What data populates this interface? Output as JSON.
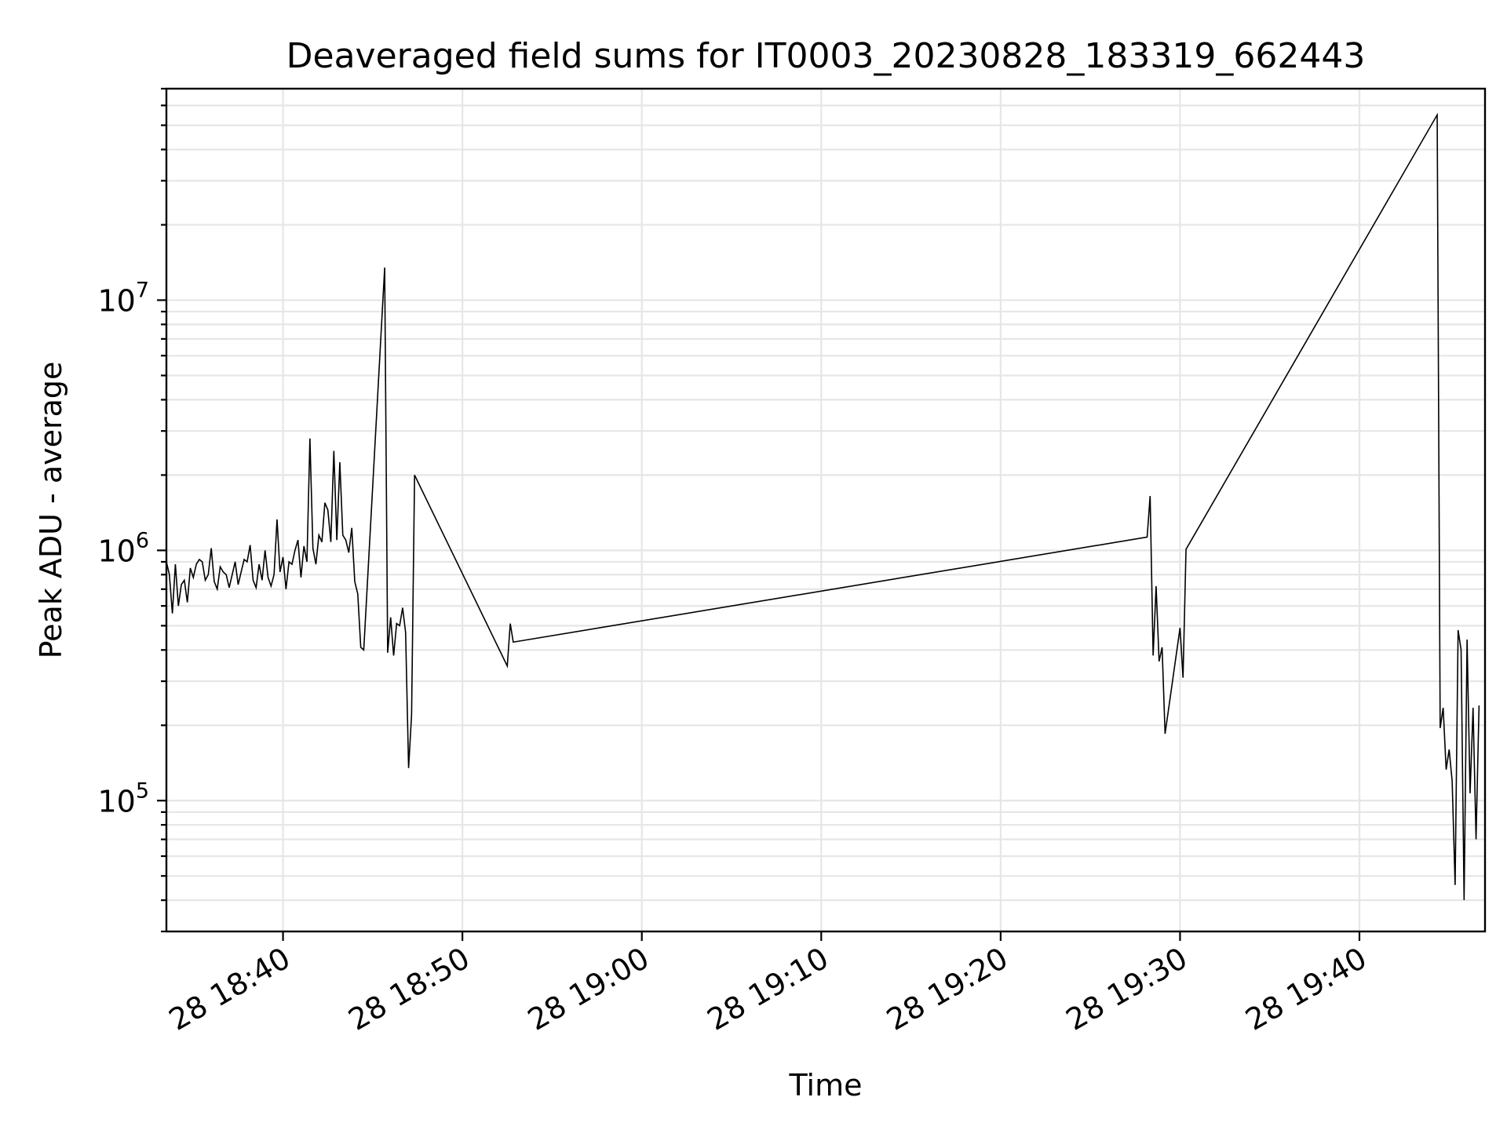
{
  "chart_data": {
    "type": "line",
    "title": "Deaveraged field sums for IT0003_20230828_183319_662443",
    "xlabel": "Time",
    "ylabel": "Peak ADU - average",
    "x_axis": "time",
    "y_scale": "log",
    "xlim": [
      "2023-08-28T18:33:30",
      "2023-08-28T19:47:00"
    ],
    "ylim": [
      30000,
      70000000
    ],
    "grid": true,
    "x_ticks": [
      "2023-08-28T18:40",
      "2023-08-28T18:50",
      "2023-08-28T19:00",
      "2023-08-28T19:10",
      "2023-08-28T19:20",
      "2023-08-28T19:30",
      "2023-08-28T19:40"
    ],
    "x_tick_labels": [
      "28 18:40",
      "28 18:50",
      "28 19:00",
      "28 19:10",
      "28 19:20",
      "28 19:30",
      "28 19:40"
    ],
    "y_ticks": [
      100000,
      1000000,
      10000000
    ],
    "y_tick_labels": [
      {
        "base": "10",
        "exp": "5"
      },
      {
        "base": "10",
        "exp": "6"
      },
      {
        "base": "10",
        "exp": "7"
      }
    ],
    "series": [
      {
        "color": "#000000",
        "points": [
          [
            "2023-08-28T18:33:30",
            900000
          ],
          [
            "2023-08-28T18:33:40",
            800000
          ],
          [
            "2023-08-28T18:33:50",
            560000
          ],
          [
            "2023-08-28T18:34:00",
            880000
          ],
          [
            "2023-08-28T18:34:10",
            600000
          ],
          [
            "2023-08-28T18:34:20",
            730000
          ],
          [
            "2023-08-28T18:34:30",
            760000
          ],
          [
            "2023-08-28T18:34:40",
            620000
          ],
          [
            "2023-08-28T18:34:50",
            850000
          ],
          [
            "2023-08-28T18:35:00",
            780000
          ],
          [
            "2023-08-28T18:35:10",
            880000
          ],
          [
            "2023-08-28T18:35:20",
            920000
          ],
          [
            "2023-08-28T18:35:30",
            900000
          ],
          [
            "2023-08-28T18:35:40",
            760000
          ],
          [
            "2023-08-28T18:35:50",
            800000
          ],
          [
            "2023-08-28T18:36:00",
            1020000
          ],
          [
            "2023-08-28T18:36:10",
            750000
          ],
          [
            "2023-08-28T18:36:20",
            700000
          ],
          [
            "2023-08-28T18:36:30",
            860000
          ],
          [
            "2023-08-28T18:36:40",
            820000
          ],
          [
            "2023-08-28T18:36:50",
            800000
          ],
          [
            "2023-08-28T18:37:00",
            710000
          ],
          [
            "2023-08-28T18:37:10",
            800000
          ],
          [
            "2023-08-28T18:37:20",
            900000
          ],
          [
            "2023-08-28T18:37:30",
            730000
          ],
          [
            "2023-08-28T18:37:40",
            820000
          ],
          [
            "2023-08-28T18:37:50",
            920000
          ],
          [
            "2023-08-28T18:38:00",
            900000
          ],
          [
            "2023-08-28T18:38:10",
            1050000
          ],
          [
            "2023-08-28T18:38:20",
            760000
          ],
          [
            "2023-08-28T18:38:30",
            710000
          ],
          [
            "2023-08-28T18:38:40",
            880000
          ],
          [
            "2023-08-28T18:38:50",
            760000
          ],
          [
            "2023-08-28T18:39:00",
            1000000
          ],
          [
            "2023-08-28T18:39:10",
            780000
          ],
          [
            "2023-08-28T18:39:20",
            720000
          ],
          [
            "2023-08-28T18:39:30",
            800000
          ],
          [
            "2023-08-28T18:39:40",
            1330000
          ],
          [
            "2023-08-28T18:39:50",
            820000
          ],
          [
            "2023-08-28T18:40:00",
            940000
          ],
          [
            "2023-08-28T18:40:10",
            700000
          ],
          [
            "2023-08-28T18:40:20",
            900000
          ],
          [
            "2023-08-28T18:40:30",
            880000
          ],
          [
            "2023-08-28T18:40:40",
            1000000
          ],
          [
            "2023-08-28T18:40:50",
            1100000
          ],
          [
            "2023-08-28T18:41:00",
            780000
          ],
          [
            "2023-08-28T18:41:10",
            1040000
          ],
          [
            "2023-08-28T18:41:20",
            900000
          ],
          [
            "2023-08-28T18:41:30",
            2800000
          ],
          [
            "2023-08-28T18:41:40",
            1020000
          ],
          [
            "2023-08-28T18:41:50",
            880000
          ],
          [
            "2023-08-28T18:42:00",
            1150000
          ],
          [
            "2023-08-28T18:42:10",
            1080000
          ],
          [
            "2023-08-28T18:42:20",
            1550000
          ],
          [
            "2023-08-28T18:42:30",
            1450000
          ],
          [
            "2023-08-28T18:42:40",
            1080000
          ],
          [
            "2023-08-28T18:42:50",
            2500000
          ],
          [
            "2023-08-28T18:43:00",
            1100000
          ],
          [
            "2023-08-28T18:43:10",
            2250000
          ],
          [
            "2023-08-28T18:43:20",
            1150000
          ],
          [
            "2023-08-28T18:43:30",
            1100000
          ],
          [
            "2023-08-28T18:43:40",
            980000
          ],
          [
            "2023-08-28T18:43:50",
            1230000
          ],
          [
            "2023-08-28T18:44:00",
            750000
          ],
          [
            "2023-08-28T18:44:10",
            670000
          ],
          [
            "2023-08-28T18:44:20",
            410000
          ],
          [
            "2023-08-28T18:44:30",
            400000
          ],
          [
            "2023-08-28T18:45:40",
            13500000
          ],
          [
            "2023-08-28T18:45:50",
            390000
          ],
          [
            "2023-08-28T18:46:00",
            540000
          ],
          [
            "2023-08-28T18:46:10",
            380000
          ],
          [
            "2023-08-28T18:46:20",
            510000
          ],
          [
            "2023-08-28T18:46:30",
            500000
          ],
          [
            "2023-08-28T18:46:40",
            590000
          ],
          [
            "2023-08-28T18:46:50",
            470000
          ],
          [
            "2023-08-28T18:47:00",
            135000
          ],
          [
            "2023-08-28T18:47:10",
            220000
          ],
          [
            "2023-08-28T18:47:20",
            2000000
          ],
          [
            "2023-08-28T18:52:30",
            345000
          ],
          [
            "2023-08-28T18:52:40",
            510000
          ],
          [
            "2023-08-28T18:52:50",
            430000
          ],
          [
            "2023-08-28T19:28:10",
            1130000
          ],
          [
            "2023-08-28T19:28:20",
            1650000
          ],
          [
            "2023-08-28T19:28:30",
            380000
          ],
          [
            "2023-08-28T19:28:40",
            720000
          ],
          [
            "2023-08-28T19:28:50",
            360000
          ],
          [
            "2023-08-28T19:29:00",
            410000
          ],
          [
            "2023-08-28T19:29:10",
            185000
          ],
          [
            "2023-08-28T19:30:00",
            490000
          ],
          [
            "2023-08-28T19:30:10",
            310000
          ],
          [
            "2023-08-28T19:30:20",
            1010000
          ],
          [
            "2023-08-28T19:44:20",
            55000000
          ],
          [
            "2023-08-28T19:44:30",
            195000
          ],
          [
            "2023-08-28T19:44:40",
            235000
          ],
          [
            "2023-08-28T19:44:50",
            133000
          ],
          [
            "2023-08-28T19:45:00",
            160000
          ],
          [
            "2023-08-28T19:45:10",
            120000
          ],
          [
            "2023-08-28T19:45:20",
            46000
          ],
          [
            "2023-08-28T19:45:30",
            480000
          ],
          [
            "2023-08-28T19:45:40",
            400000
          ],
          [
            "2023-08-28T19:45:50",
            40000
          ],
          [
            "2023-08-28T19:46:00",
            440000
          ],
          [
            "2023-08-28T19:46:10",
            107000
          ],
          [
            "2023-08-28T19:46:20",
            235000
          ],
          [
            "2023-08-28T19:46:30",
            70000
          ],
          [
            "2023-08-28T19:46:40",
            240000
          ]
        ]
      }
    ]
  }
}
